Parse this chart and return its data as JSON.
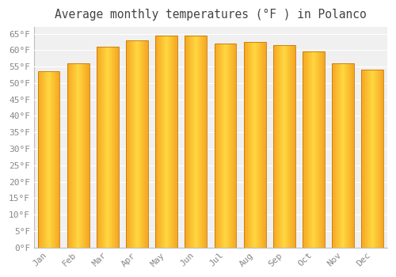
{
  "title": "Average monthly temperatures (°F ) in Polanco",
  "months": [
    "Jan",
    "Feb",
    "Mar",
    "Apr",
    "May",
    "Jun",
    "Jul",
    "Aug",
    "Sep",
    "Oct",
    "Nov",
    "Dec"
  ],
  "values": [
    53.5,
    56.0,
    61.0,
    63.0,
    64.5,
    64.5,
    62.0,
    62.5,
    61.5,
    59.5,
    56.0,
    54.0
  ],
  "bar_color_center": "#FFD740",
  "bar_color_edge": "#F5A623",
  "bar_border_color": "#C87800",
  "background_color": "#FFFFFF",
  "plot_bg_color": "#F0F0F0",
  "grid_color": "#FFFFFF",
  "text_color": "#888888",
  "title_color": "#444444",
  "ylim": [
    0,
    67
  ],
  "ytick_step": 5,
  "title_fontsize": 10.5,
  "tick_fontsize": 8,
  "bar_width": 0.75
}
